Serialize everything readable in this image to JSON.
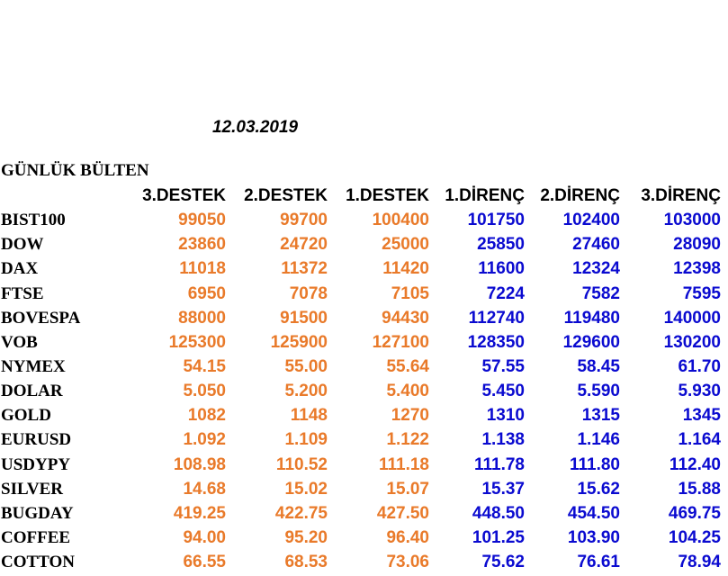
{
  "date": "12.03.2019",
  "bulletin_title": "GÜNLÜK BÜLTEN",
  "columns": [
    "3.DESTEK",
    "2.DESTEK",
    "1.DESTEK",
    "1.DİRENÇ",
    "2.DİRENÇ",
    "3.DİRENÇ"
  ],
  "colors": {
    "support": "#e97a2a",
    "resistance": "#0a0ad0",
    "text": "#000000"
  },
  "rows": [
    {
      "name": "BIST100",
      "values": [
        "99050",
        "99700",
        "100400",
        "101750",
        "102400",
        "103000"
      ]
    },
    {
      "name": "DOW",
      "values": [
        "23860",
        "24720",
        "25000",
        "25850",
        "27460",
        "28090"
      ]
    },
    {
      "name": "DAX",
      "values": [
        "11018",
        "11372",
        "11420",
        "11600",
        "12324",
        "12398"
      ]
    },
    {
      "name": "FTSE",
      "values": [
        "6950",
        "7078",
        "7105",
        "7224",
        "7582",
        "7595"
      ]
    },
    {
      "name": "BOVESPA",
      "values": [
        "88000",
        "91500",
        "94430",
        "112740",
        "119480",
        "140000"
      ]
    },
    {
      "name": "VOB",
      "values": [
        "125300",
        "125900",
        "127100",
        "128350",
        "129600",
        "130200"
      ]
    },
    {
      "name": "NYMEX",
      "values": [
        "54.15",
        "55.00",
        "55.64",
        "57.55",
        "58.45",
        "61.70"
      ]
    },
    {
      "name": "DOLAR",
      "values": [
        "5.050",
        "5.200",
        "5.400",
        "5.450",
        "5.590",
        "5.930"
      ]
    },
    {
      "name": "GOLD",
      "values": [
        "1082",
        "1148",
        "1270",
        "1310",
        "1315",
        "1345"
      ]
    },
    {
      "name": "EURUSD",
      "values": [
        "1.092",
        "1.109",
        "1.122",
        "1.138",
        "1.146",
        "1.164"
      ]
    },
    {
      "name": "USDYPY",
      "values": [
        "108.98",
        "110.52",
        "111.18",
        "111.78",
        "111.80",
        "112.40"
      ]
    },
    {
      "name": "SILVER",
      "values": [
        "14.68",
        "15.02",
        "15.07",
        "15.37",
        "15.62",
        "15.88"
      ]
    },
    {
      "name": "BUGDAY",
      "values": [
        "419.25",
        "422.75",
        "427.50",
        "448.50",
        "454.50",
        "469.75"
      ]
    },
    {
      "name": "COFFEE",
      "values": [
        "94.00",
        "95.20",
        "96.40",
        "101.25",
        "103.90",
        "104.25"
      ]
    },
    {
      "name": "COTTON",
      "values": [
        "66.55",
        "68.53",
        "73.06",
        "75.62",
        "76.61",
        "78.94"
      ]
    }
  ]
}
